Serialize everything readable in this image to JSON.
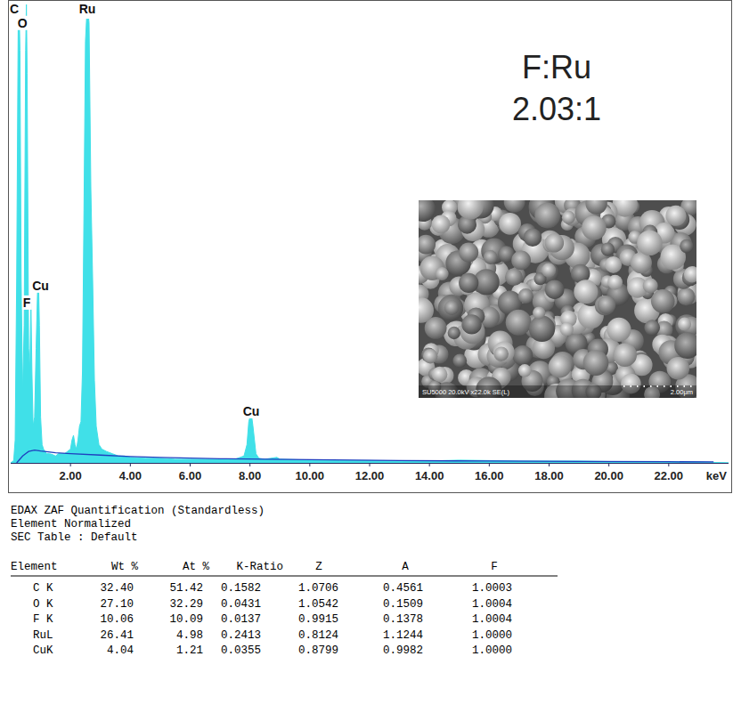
{
  "chart_data": {
    "type": "line",
    "x_label": "keV",
    "xlim": [
      0,
      24
    ],
    "ylim": [
      0,
      100
    ],
    "xticks": [
      {
        "value": 2,
        "label": "2.00"
      },
      {
        "value": 4,
        "label": "4.00"
      },
      {
        "value": 6,
        "label": "6.00"
      },
      {
        "value": 8,
        "label": "8.00"
      },
      {
        "value": 10,
        "label": "10.00"
      },
      {
        "value": 12,
        "label": "12.00"
      },
      {
        "value": 14,
        "label": "14.00"
      },
      {
        "value": 16,
        "label": "16.00"
      },
      {
        "value": 18,
        "label": "18.00"
      },
      {
        "value": 20,
        "label": "20.00"
      },
      {
        "value": 22,
        "label": "22.00"
      }
    ],
    "tick_labels": "x",
    "grid": false,
    "series": [
      {
        "type": "area",
        "color": "#40e0e8",
        "x": [
          0,
          0.1,
          0.15,
          0.2,
          0.25,
          0.28,
          0.31,
          0.35,
          0.4,
          0.45,
          0.5,
          0.525,
          0.55,
          0.6,
          0.64,
          0.677,
          0.71,
          0.75,
          0.8,
          0.85,
          0.9,
          0.93,
          0.96,
          1,
          1.05,
          1.1,
          1.2,
          1.3,
          1.4,
          1.5,
          1.6,
          1.7,
          1.8,
          1.9,
          2,
          2.05,
          2.1,
          2.15,
          2.2,
          2.25,
          2.3,
          2.35,
          2.4,
          2.45,
          2.5,
          2.56,
          2.62,
          2.68,
          2.74,
          2.8,
          2.86,
          2.95,
          3.05,
          3.2,
          3.4,
          3.6,
          3.8,
          4,
          4.5,
          5,
          5.5,
          6,
          6.5,
          7,
          7.5,
          7.8,
          7.9,
          7.96,
          8.04,
          8.1,
          8.2,
          8.3,
          8.5,
          8.9,
          9,
          9.5,
          10,
          11,
          12,
          13,
          14,
          15,
          16,
          17,
          18,
          19,
          20,
          21,
          22,
          23,
          24
        ],
        "values": [
          0,
          0.5,
          5,
          40,
          95,
          100,
          90,
          40,
          15,
          30,
          90,
          100,
          85,
          25,
          20,
          35,
          20,
          8,
          10,
          25,
          38,
          40,
          30,
          10,
          4,
          3,
          2,
          2,
          1.8,
          1.5,
          2,
          2,
          2,
          2.5,
          3,
          5,
          6,
          4,
          3,
          5,
          8,
          9,
          20,
          55,
          92,
          100,
          96,
          60,
          40,
          18,
          8,
          4,
          3,
          2.5,
          2,
          1.5,
          1.5,
          1.2,
          1,
          1,
          0.8,
          0.8,
          0.8,
          0.8,
          0.8,
          1.5,
          4,
          9,
          11,
          8,
          2,
          1,
          0.8,
          1.2,
          0.8,
          0.7,
          0.6,
          0.5,
          0.5,
          0.4,
          0.4,
          0.6,
          0.5,
          0.4,
          0.4,
          0.4,
          0.3,
          0.3,
          0.3,
          0.2,
          0
        ]
      },
      {
        "type": "line",
        "color": "#1f3fbf",
        "x": [
          0.2,
          0.4,
          0.6,
          0.8,
          1,
          1.5,
          2,
          3,
          4,
          5,
          7,
          10,
          13,
          16,
          19,
          22,
          23.5
        ],
        "values": [
          0,
          1.5,
          2.5,
          2.8,
          2.6,
          2.2,
          2,
          1.7,
          1.4,
          1.2,
          0.9,
          0.7,
          0.5,
          0.4,
          0.3,
          0.25,
          0.2
        ]
      }
    ],
    "annotations": [
      {
        "text": "C",
        "x": 0.12,
        "y": 98
      },
      {
        "text": "O",
        "x": 0.39,
        "y": 95
      },
      {
        "text": "Ru",
        "x": 2.56,
        "y": 98
      },
      {
        "text": "Cu",
        "x": 1.0,
        "y": 37.7
      },
      {
        "text": "F",
        "x": 0.54,
        "y": 34
      },
      {
        "text": "Cu",
        "x": 8.04,
        "y": 10.3
      }
    ]
  },
  "ratio_label": [
    "F:Ru",
    "2.03:1"
  ],
  "inset": {
    "caption": "SU5000 20.0kV x22.0k SE(L)",
    "scale_label": "2.00μm"
  },
  "table": {
    "title_lines": [
      "EDAX ZAF Quantification (Standardless)",
      "Element Normalized",
      "SEC Table : Default"
    ],
    "columns": [
      "Element",
      "Wt %",
      "At %",
      "K-Ratio",
      "Z",
      "A",
      "F"
    ],
    "rows": [
      [
        "C K",
        "32.40",
        "51.42",
        "0.1582",
        "1.0706",
        "0.4561",
        "1.0003"
      ],
      [
        "O K",
        "27.10",
        "32.29",
        "0.0431",
        "1.0542",
        "0.1509",
        "1.0004"
      ],
      [
        "F K",
        "10.06",
        "10.09",
        "0.0137",
        "0.9915",
        "0.1378",
        "1.0004"
      ],
      [
        "RuL",
        "26.41",
        "4.98",
        "0.2413",
        "0.8124",
        "1.1244",
        "1.0000"
      ],
      [
        "CuK",
        "4.04",
        "1.21",
        "0.0355",
        "0.8799",
        "0.9982",
        "1.0000"
      ]
    ]
  }
}
